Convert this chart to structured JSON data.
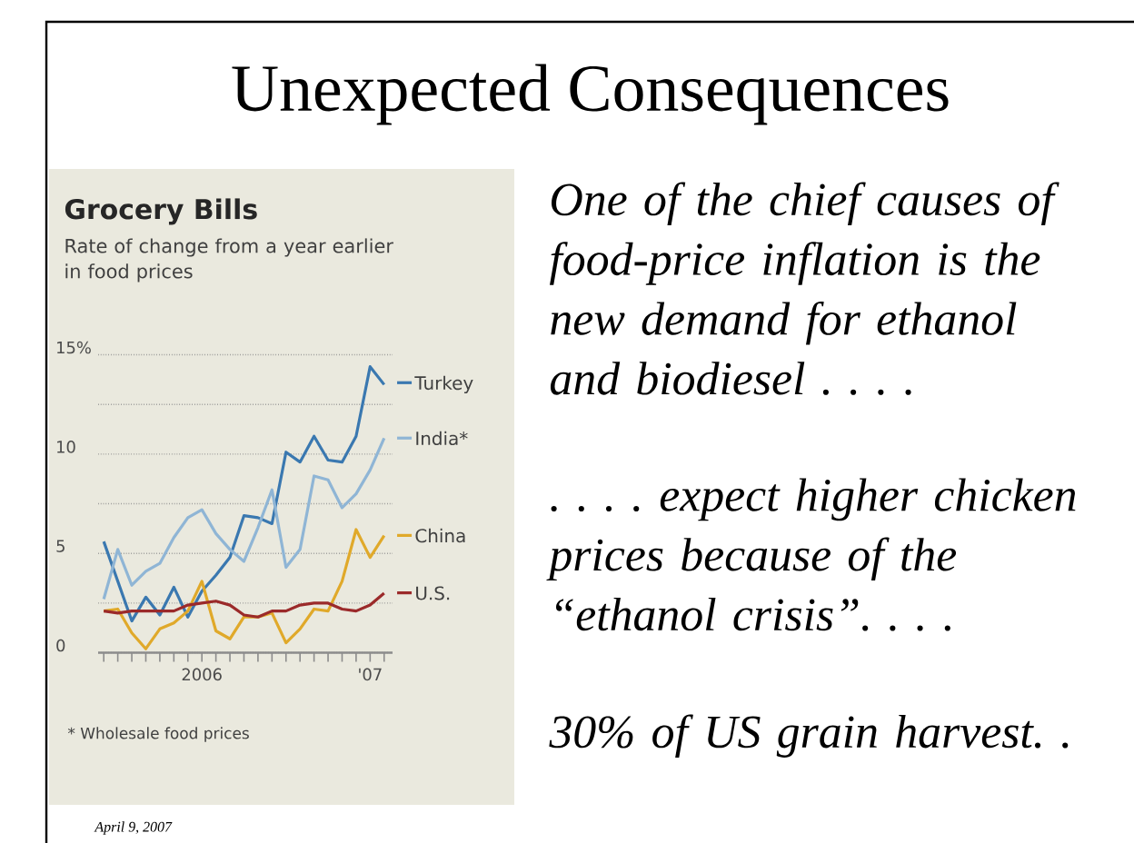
{
  "chart_data": {
    "type": "line",
    "title": "Grocery Bills",
    "subtitle": "Rate of change from a year earlier in food prices",
    "categories": [
      null,
      null,
      null,
      null,
      null,
      null,
      null,
      "2006",
      null,
      null,
      null,
      null,
      null,
      null,
      null,
      null,
      null,
      null,
      null,
      "'07",
      null
    ],
    "series": [
      {
        "name": "Turkey",
        "color": "#3a78b0",
        "values": [
          5.6,
          3.6,
          1.6,
          2.8,
          1.9,
          3.3,
          1.8,
          3.1,
          3.9,
          4.8,
          6.9,
          6.8,
          6.5,
          10.1,
          9.6,
          10.9,
          9.7,
          9.6,
          10.9,
          14.4,
          13.5
        ]
      },
      {
        "name": "India*",
        "color": "#8fb5d5",
        "values": [
          2.7,
          5.2,
          3.4,
          4.1,
          4.5,
          5.8,
          6.8,
          7.2,
          6.0,
          5.2,
          4.6,
          6.3,
          8.2,
          4.3,
          5.2,
          8.9,
          8.7,
          7.3,
          8.0,
          9.2,
          10.8
        ]
      },
      {
        "name": "China",
        "color": "#e0a92a",
        "values": [
          2.1,
          2.2,
          1.0,
          0.2,
          1.2,
          1.5,
          2.1,
          3.6,
          1.1,
          0.7,
          1.8,
          1.8,
          2.0,
          0.5,
          1.2,
          2.2,
          2.1,
          3.6,
          6.2,
          4.8,
          5.9
        ]
      },
      {
        "name": "U.S.",
        "color": "#9b2a2a",
        "values": [
          2.1,
          2.0,
          2.1,
          2.1,
          2.1,
          2.1,
          2.4,
          2.5,
          2.6,
          2.4,
          1.9,
          1.8,
          2.1,
          2.1,
          2.4,
          2.5,
          2.5,
          2.2,
          2.1,
          2.4,
          3.0
        ]
      }
    ],
    "ylim": [
      0,
      15
    ],
    "yticks": [
      0,
      {
        "value": 2.5,
        "label": null
      },
      5,
      {
        "value": 7.5,
        "label": null
      },
      10,
      {
        "value": 12.5,
        "label": null
      },
      {
        "value": 15,
        "label": "15%"
      }
    ],
    "grid": "y",
    "line_style": "solid",
    "legend": "right",
    "annotations": [
      "Unexpected Consequences",
      "One of the chief causes of food-price inflation is the new demand for ethanol and biodiesel . . . .",
      ". . . . expect higher chicken prices because of the “ethanol crisis”. . . .",
      "30% of US grain harvest. .",
      "* Wholesale food prices",
      "April 9, 2007"
    ]
  }
}
